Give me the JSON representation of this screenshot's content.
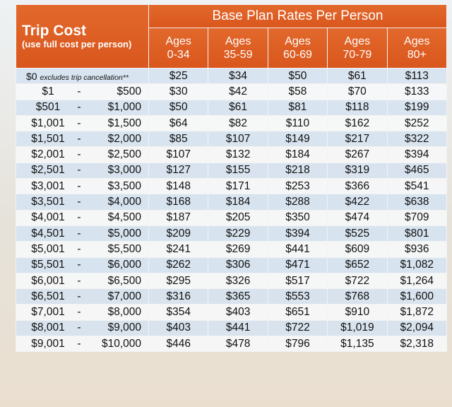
{
  "header": {
    "trip_cost_title": "Trip Cost",
    "trip_cost_subtitle": "(use full cost per person)",
    "rates_title": "Base Plan Rates Per Person",
    "age_groups": [
      {
        "line1": "Ages",
        "line2": "0-34"
      },
      {
        "line1": "Ages",
        "line2": "35-59"
      },
      {
        "line1": "Ages",
        "line2": "60-69"
      },
      {
        "line1": "Ages",
        "line2": "70-79"
      },
      {
        "line1": "Ages",
        "line2": "80+"
      }
    ]
  },
  "first_row": {
    "label": "$0",
    "note": "excludes trip cancellation**",
    "rates": [
      "$25",
      "$34",
      "$50",
      "$61",
      "$113"
    ]
  },
  "rows": [
    {
      "lo": "$1",
      "dash": "-",
      "hi": "$500",
      "rates": [
        "$30",
        "$42",
        "$58",
        "$70",
        "$133"
      ]
    },
    {
      "lo": "$501",
      "dash": "-",
      "hi": "$1,000",
      "rates": [
        "$50",
        "$61",
        "$81",
        "$118",
        "$199"
      ]
    },
    {
      "lo": "$1,001",
      "dash": "-",
      "hi": "$1,500",
      "rates": [
        "$64",
        "$82",
        "$110",
        "$162",
        "$252"
      ]
    },
    {
      "lo": "$1,501",
      "dash": "-",
      "hi": "$2,000",
      "rates": [
        "$85",
        "$107",
        "$149",
        "$217",
        "$322"
      ]
    },
    {
      "lo": "$2,001",
      "dash": "-",
      "hi": "$2,500",
      "rates": [
        "$107",
        "$132",
        "$184",
        "$267",
        "$394"
      ]
    },
    {
      "lo": "$2,501",
      "dash": "-",
      "hi": "$3,000",
      "rates": [
        "$127",
        "$155",
        "$218",
        "$319",
        "$465"
      ]
    },
    {
      "lo": "$3,001",
      "dash": "-",
      "hi": "$3,500",
      "rates": [
        "$148",
        "$171",
        "$253",
        "$366",
        "$541"
      ]
    },
    {
      "lo": "$3,501",
      "dash": "-",
      "hi": "$4,000",
      "rates": [
        "$168",
        "$184",
        "$288",
        "$422",
        "$638"
      ]
    },
    {
      "lo": "$4,001",
      "dash": "-",
      "hi": "$4,500",
      "rates": [
        "$187",
        "$205",
        "$350",
        "$474",
        "$709"
      ]
    },
    {
      "lo": "$4,501",
      "dash": "-",
      "hi": "$5,000",
      "rates": [
        "$209",
        "$229",
        "$394",
        "$525",
        "$801"
      ]
    },
    {
      "lo": "$5,001",
      "dash": "-",
      "hi": "$5,500",
      "rates": [
        "$241",
        "$269",
        "$441",
        "$609",
        "$936"
      ]
    },
    {
      "lo": "$5,501",
      "dash": "-",
      "hi": "$6,000",
      "rates": [
        "$262",
        "$306",
        "$471",
        "$652",
        "$1,082"
      ]
    },
    {
      "lo": "$6,001",
      "dash": "-",
      "hi": "$6,500",
      "rates": [
        "$295",
        "$326",
        "$517",
        "$722",
        "$1,264"
      ]
    },
    {
      "lo": "$6,501",
      "dash": "-",
      "hi": "$7,000",
      "rates": [
        "$316",
        "$365",
        "$553",
        "$768",
        "$1,600"
      ]
    },
    {
      "lo": "$7,001",
      "dash": "-",
      "hi": "$8,000",
      "rates": [
        "$354",
        "$403",
        "$651",
        "$910",
        "$1,872"
      ]
    },
    {
      "lo": "$8,001",
      "dash": "-",
      "hi": "$9,000",
      "rates": [
        "$403",
        "$441",
        "$722",
        "$1,019",
        "$2,094"
      ]
    },
    {
      "lo": "$9,001",
      "dash": "-",
      "hi": "$10,000",
      "rates": [
        "$446",
        "$478",
        "$796",
        "$1,135",
        "$2,318"
      ]
    }
  ],
  "colors": {
    "header_orange": "#dc5c22",
    "row_blue": "#d6e3f0",
    "row_white": "#f6f7f8"
  }
}
